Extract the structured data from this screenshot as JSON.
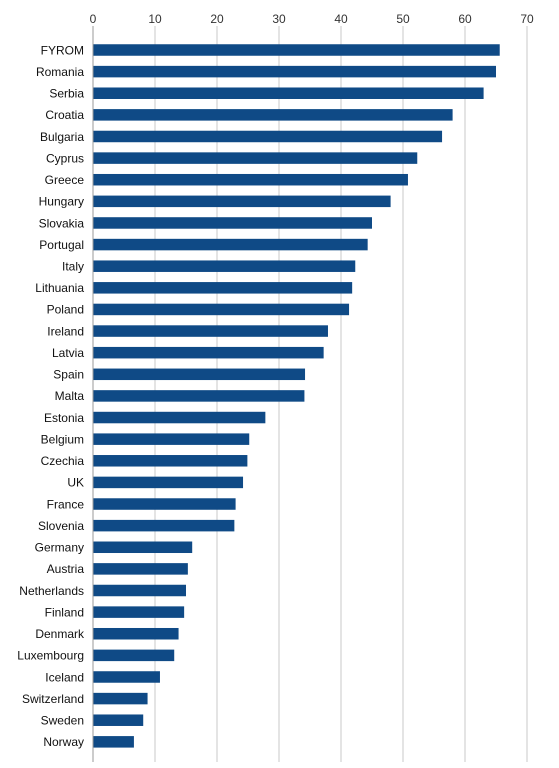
{
  "chart_data": {
    "type": "bar",
    "orientation": "horizontal",
    "categories": [
      "FYROM",
      "Romania",
      "Serbia",
      "Croatia",
      "Bulgaria",
      "Cyprus",
      "Greece",
      "Hungary",
      "Slovakia",
      "Portugal",
      "Italy",
      "Lithuania",
      "Poland",
      "Ireland",
      "Latvia",
      "Spain",
      "Malta",
      "Estonia",
      "Belgium",
      "Czechia",
      "UK",
      "France",
      "Slovenia",
      "Germany",
      "Austria",
      "Netherlands",
      "Finland",
      "Denmark",
      "Luxembourg",
      "Iceland",
      "Switzerland",
      "Sweden",
      "Norway"
    ],
    "values": [
      65.6,
      65.0,
      63.0,
      58.0,
      56.3,
      52.3,
      50.8,
      48.0,
      45.0,
      44.3,
      42.3,
      41.8,
      41.3,
      37.9,
      37.2,
      34.2,
      34.1,
      27.8,
      25.2,
      24.9,
      24.2,
      23.0,
      22.8,
      16.0,
      15.3,
      15.0,
      14.7,
      13.8,
      13.1,
      10.8,
      8.8,
      8.1,
      6.6
    ],
    "xlim": [
      0,
      70
    ],
    "x_ticks": [
      0,
      10,
      20,
      30,
      40,
      50,
      60,
      70
    ],
    "x_axis_position": "top",
    "grid": true,
    "bar_color": "#0f4a86",
    "title": "",
    "xlabel": "",
    "ylabel": ""
  }
}
